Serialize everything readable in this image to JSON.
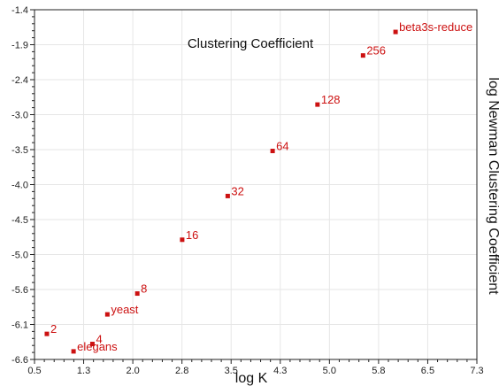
{
  "chart_data": {
    "type": "scatter",
    "title": "Clustering Coefficient",
    "xlabel": "log K",
    "ylabel": "log Newman Clustering Coefficient",
    "xlim": [
      0.5,
      7.3
    ],
    "ylim": [
      -6.6,
      -1.4
    ],
    "x_ticks": [
      "0.5",
      "1.3",
      "2.0",
      "2.8",
      "3.5",
      "4.3",
      "5.0",
      "5.8",
      "6.5",
      "7.3"
    ],
    "y_ticks": [
      "-1.4",
      "-1.9",
      "-2.4",
      "-3.0",
      "-3.5",
      "-4.0",
      "-4.5",
      "-5.0",
      "-5.6",
      "-6.1",
      "-6.6"
    ],
    "grid": true,
    "marker_color": "#cc1111",
    "points": [
      {
        "label": "2",
        "x": 0.69,
        "y": -6.22
      },
      {
        "label": "4",
        "x": 1.39,
        "y": -6.37
      },
      {
        "label": "elegans",
        "x": 1.1,
        "y": -6.48
      },
      {
        "label": "yeast",
        "x": 1.62,
        "y": -5.93
      },
      {
        "label": "8",
        "x": 2.08,
        "y": -5.62
      },
      {
        "label": "16",
        "x": 2.77,
        "y": -4.82
      },
      {
        "label": "32",
        "x": 3.47,
        "y": -4.17
      },
      {
        "label": "64",
        "x": 4.16,
        "y": -3.5
      },
      {
        "label": "128",
        "x": 4.85,
        "y": -2.81
      },
      {
        "label": "256",
        "x": 5.55,
        "y": -2.08
      },
      {
        "label": "beta3s-reduce",
        "x": 6.05,
        "y": -1.73
      }
    ]
  }
}
